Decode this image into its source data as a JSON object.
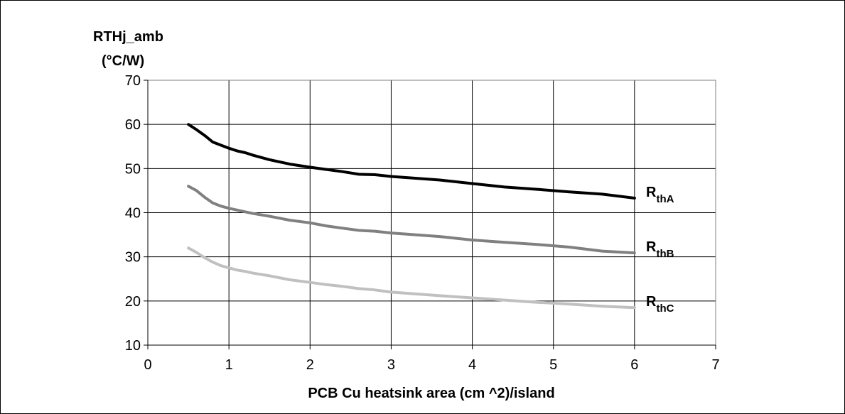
{
  "chart_data": {
    "type": "line",
    "ylabel_line1": "RTHj_amb",
    "ylabel_line2": "(°C/W)",
    "xlabel": "PCB Cu heatsink area (cm ^2)/island",
    "xlim": [
      0,
      7
    ],
    "ylim": [
      10,
      70
    ],
    "x_ticks": [
      "0",
      "1",
      "2",
      "3",
      "4",
      "5",
      "6",
      "7"
    ],
    "y_ticks": [
      "10",
      "20",
      "30",
      "40",
      "50",
      "60",
      "70"
    ],
    "grid": true,
    "legend_placement": "right end of each line",
    "x": [
      0.5,
      0.6,
      0.7,
      0.8,
      0.9,
      1.0,
      1.1,
      1.2,
      1.3,
      1.5,
      1.75,
      2.0,
      2.2,
      2.4,
      2.6,
      2.8,
      3.0,
      3.3,
      3.6,
      4.0,
      4.4,
      4.8,
      5.2,
      5.6,
      6.0
    ],
    "series": [
      {
        "name_main": "R",
        "name_sub": "thA",
        "color": "#000000",
        "values": [
          60.0,
          58.8,
          57.5,
          56.0,
          55.3,
          54.6,
          54.0,
          53.6,
          53.0,
          52.0,
          51.0,
          50.3,
          49.8,
          49.3,
          48.7,
          48.6,
          48.2,
          47.8,
          47.4,
          46.6,
          45.8,
          45.3,
          44.7,
          44.2,
          43.3
        ]
      },
      {
        "name_main": "R",
        "name_sub": "thB",
        "color": "#808080",
        "values": [
          46.0,
          45.0,
          43.5,
          42.2,
          41.5,
          41.0,
          40.6,
          40.2,
          39.8,
          39.2,
          38.3,
          37.7,
          37.0,
          36.5,
          36.0,
          35.8,
          35.4,
          35.0,
          34.6,
          33.8,
          33.3,
          32.8,
          32.2,
          31.3,
          30.9
        ]
      },
      {
        "name_main": "R",
        "name_sub": "thC",
        "color": "#c0c0c0",
        "values": [
          32.0,
          31.0,
          29.8,
          28.8,
          28.0,
          27.5,
          27.0,
          26.7,
          26.3,
          25.7,
          24.8,
          24.2,
          23.7,
          23.3,
          22.8,
          22.5,
          22.0,
          21.6,
          21.2,
          20.7,
          20.2,
          19.7,
          19.3,
          18.8,
          18.5
        ]
      }
    ]
  }
}
